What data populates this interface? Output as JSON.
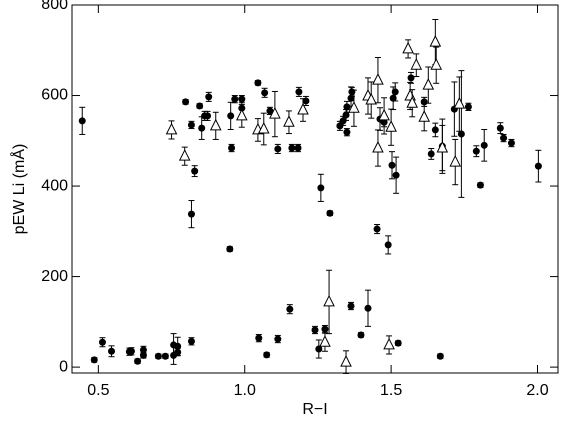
{
  "chart_data": {
    "type": "scatter",
    "x_label": "R−I",
    "y_label": "pEW Li (mÅ)",
    "xlim": [
      0.41,
      2.07
    ],
    "ylim": [
      -13,
      800
    ],
    "xticks": [
      0.5,
      {
        "value": 1.0,
        "label": "1.0"
      },
      1.5,
      {
        "value": 2.0,
        "label": "2.0"
      }
    ],
    "yticks": [
      0,
      200,
      400,
      600,
      800
    ],
    "series": [
      {
        "name": "filled",
        "marker": "circle",
        "color": "#000000",
        "x": [
          0.445,
          0.486,
          0.514,
          0.545,
          0.606,
          0.613,
          0.634,
          0.654,
          0.654,
          0.705,
          0.729,
          0.757,
          0.757,
          0.771,
          0.771,
          0.798,
          0.818,
          0.818,
          0.829,
          0.846,
          0.818,
          0.853,
          0.863,
          0.873,
          0.877,
          0.949,
          0.955,
          0.952,
          0.966,
          0.99,
          0.99,
          1.045,
          1.048,
          1.068,
          1.075,
          1.086,
          1.113,
          1.113,
          1.154,
          1.161,
          1.182,
          1.185,
          1.209,
          1.24,
          1.253,
          1.26,
          1.274,
          1.291,
          1.325,
          1.336,
          1.346,
          1.349,
          1.349,
          1.363,
          1.366,
          1.363,
          1.397,
          1.421,
          1.452,
          1.462,
          1.476,
          1.49,
          1.503,
          1.507,
          1.517,
          1.524,
          1.514,
          1.568,
          1.613,
          1.637,
          1.651,
          1.668,
          1.675,
          1.716,
          1.74,
          1.764,
          1.791,
          1.805,
          1.818,
          1.873,
          1.884,
          1.911,
          2.003
        ],
        "values": [
          544,
          16,
          55,
          35,
          34,
          35,
          13,
          26,
          38,
          24,
          24,
          26,
          49,
          46,
          33,
          586,
          57,
          535,
          433,
          577,
          338,
          528,
          555,
          555,
          597,
          261,
          484,
          555,
          592,
          572,
          592,
          628,
          64,
          606,
          27,
          566,
          482,
          62,
          128,
          484,
          484,
          608,
          588,
          82,
          40,
          396,
          84,
          340,
          533,
          544,
          557,
          519,
          575,
          594,
          608,
          135,
          71,
          130,
          305,
          548,
          541,
          270,
          446,
          594,
          424,
          53,
          608,
          639,
          586,
          471,
          524,
          24,
          488,
          570,
          515,
          575,
          477,
          402,
          490,
          528,
          506,
          495,
          444
        ],
        "errors": [
          30,
          5,
          10,
          12,
          8,
          8,
          5,
          6,
          8,
          5,
          5,
          20,
          25,
          20,
          8,
          5,
          8,
          8,
          12,
          5,
          30,
          25,
          10,
          10,
          10,
          5,
          8,
          30,
          8,
          20,
          8,
          5,
          8,
          10,
          5,
          8,
          10,
          8,
          10,
          8,
          8,
          10,
          10,
          8,
          20,
          30,
          8,
          5,
          10,
          10,
          12,
          8,
          12,
          25,
          10,
          8,
          5,
          40,
          10,
          25,
          10,
          20,
          30,
          25,
          40,
          5,
          20,
          12,
          10,
          12,
          15,
          5,
          60,
          60,
          140,
          8,
          12,
          5,
          35,
          12,
          8,
          8,
          35
        ]
      },
      {
        "name": "open",
        "marker": "triangle",
        "color": "#000000",
        "x": [
          0.75,
          0.795,
          0.901,
          0.99,
          1.045,
          1.065,
          1.103,
          1.151,
          1.199,
          1.288,
          1.274,
          1.346,
          1.373,
          1.421,
          1.432,
          1.455,
          1.455,
          1.476,
          1.493,
          1.5,
          1.558,
          1.565,
          1.572,
          1.586,
          1.613,
          1.627,
          1.651,
          1.654,
          1.675,
          1.719,
          1.733
        ],
        "values": [
          524,
          466,
          533,
          555,
          524,
          526,
          559,
          541,
          568,
          144,
          55,
          11,
          572,
          599,
          590,
          634,
          484,
          555,
          49,
          530,
          703,
          599,
          583,
          667,
          552,
          623,
          718,
          667,
          484,
          453,
          581
        ],
        "errors": [
          20,
          20,
          30,
          25,
          25,
          35,
          50,
          25,
          25,
          70,
          20,
          25,
          40,
          40,
          40,
          50,
          40,
          40,
          20,
          40,
          20,
          30,
          30,
          25,
          30,
          40,
          50,
          40,
          50,
          50,
          60
        ]
      }
    ]
  }
}
